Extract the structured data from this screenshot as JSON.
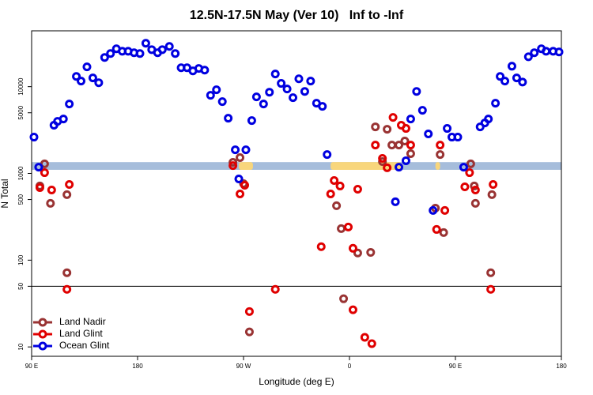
{
  "chart_data": {
    "type": "scatter",
    "title": "12.5N-17.5N May (Ver 10)   Inf to -Inf",
    "xlabel": "Longitude (deg E)",
    "ylabel": "N Total",
    "xlim": [
      90,
      540
    ],
    "xticks": [
      {
        "value": 90,
        "label": "90 E"
      },
      180,
      {
        "value": 270,
        "label": "90 W"
      },
      {
        "value": 360,
        "label": "0"
      },
      {
        "value": 450,
        "label": "90 E"
      },
      {
        "value": 540,
        "label": "180"
      }
    ],
    "ylim": [
      7.8,
      44000
    ],
    "yticks": [
      10,
      50,
      100,
      500,
      1000,
      5000,
      10000
    ],
    "log_y": true,
    "legend": "bottom-left",
    "hline": 50,
    "band": {
      "range": [
        1100,
        1350
      ],
      "color": "#a6bddb"
    },
    "highlights": {
      "ranges": [
        [
          266,
          278
        ],
        [
          344,
          404
        ],
        [
          433,
          437
        ]
      ],
      "color": "#f8d67c"
    },
    "series": [
      {
        "name": "Land Nadir",
        "color": "#993333",
        "x": [
          97,
          101,
          106,
          120,
          120,
          261,
          267,
          270,
          275,
          349,
          353,
          355,
          367,
          378,
          382,
          388,
          392,
          396,
          402,
          407,
          412,
          433,
          437,
          440,
          463,
          466,
          467,
          480,
          481
        ],
        "values": [
          716,
          1290,
          452,
          71.6,
          569,
          1340,
          1520,
          762,
          14.9,
          424,
          231,
          35.9,
          121,
          123,
          3440,
          1370,
          3230,
          2120,
          2120,
          2360,
          1690,
          398,
          1650,
          208,
          1290,
          716,
          452,
          71.6,
          569
        ]
      },
      {
        "name": "Land Glint",
        "color": "#e00000",
        "x": [
          97,
          101,
          107,
          120,
          122,
          261,
          267,
          271,
          275,
          297,
          336,
          344,
          347,
          352,
          359,
          363,
          363,
          367,
          373,
          379,
          382,
          388,
          392,
          397,
          404,
          408,
          412,
          434,
          437,
          441,
          458,
          462,
          467,
          480,
          482
        ],
        "values": [
          686,
          1020,
          644,
          46.1,
          746,
          1230,
          580,
          731,
          25.6,
          46.1,
          143,
          580,
          828,
          716,
          241,
          137,
          26.8,
          658,
          12.9,
          10.9,
          2120,
          1490,
          1160,
          4420,
          3590,
          3300,
          2120,
          226,
          2120,
          374,
          700,
          1020,
          644,
          46.1,
          746
        ]
      },
      {
        "name": "Ocean Glint",
        "color": "#0000e0",
        "x": [
          92,
          96,
          109,
          112,
          117,
          122,
          128,
          132,
          137,
          142,
          147,
          152,
          157,
          162,
          167,
          172,
          177,
          182,
          187,
          192,
          197,
          201,
          207,
          212,
          217,
          222,
          227,
          232,
          237,
          242,
          247,
          252,
          257,
          263,
          266,
          272,
          277,
          281,
          287,
          292,
          297,
          302,
          307,
          312,
          317,
          322,
          327,
          332,
          337,
          341,
          399,
          402,
          408,
          412,
          417,
          422,
          427,
          431,
          443,
          447,
          452,
          457,
          471,
          475,
          478,
          484,
          488,
          492,
          498,
          502,
          507,
          512,
          517,
          523,
          527,
          533,
          538
        ],
        "values": [
          2620,
          1180,
          3590,
          3980,
          4240,
          6310,
          13100,
          11600,
          16900,
          12600,
          11100,
          21700,
          24100,
          27300,
          25600,
          25600,
          24600,
          24100,
          31600,
          26700,
          24600,
          26700,
          29100,
          24100,
          16500,
          16500,
          15200,
          16200,
          15500,
          7940,
          9200,
          6720,
          4330,
          1870,
          863,
          1870,
          4060,
          7620,
          6310,
          8630,
          14000,
          10900,
          9390,
          7460,
          12300,
          8810,
          11600,
          6440,
          5930,
          1650,
          471,
          1180,
          1400,
          4240,
          8810,
          5340,
          2850,
          374,
          3300,
          2620,
          2620,
          1180,
          3440,
          3820,
          4240,
          6440,
          13100,
          11600,
          17200,
          12600,
          11300,
          22100,
          24600,
          27300,
          25600,
          25600,
          25100
        ]
      }
    ]
  }
}
